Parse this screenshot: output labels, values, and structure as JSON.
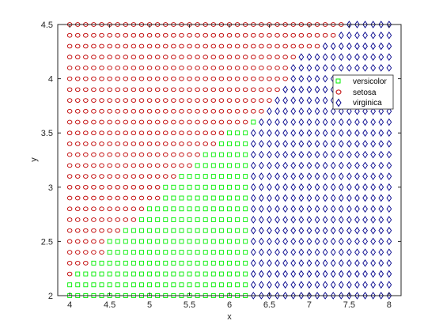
{
  "chart_data": {
    "type": "scatter",
    "title": "",
    "xlabel": "x",
    "ylabel": "y",
    "xlim": [
      3.85,
      8.15
    ],
    "ylim": [
      2.0,
      4.5
    ],
    "xticks": [
      "4",
      "4.5",
      "5",
      "5.5",
      "6",
      "6.5",
      "7",
      "7.5",
      "8"
    ],
    "yticks": [
      "2",
      "2.5",
      "3",
      "3.5",
      "4",
      "4.5"
    ],
    "grid": false,
    "box": true,
    "legend_position": "top-right inside",
    "grid_step": {
      "x": 0.1,
      "y": 0.1
    },
    "x_range": [
      4.0,
      8.0
    ],
    "y_range": [
      2.0,
      4.5
    ],
    "series": [
      {
        "name": "versicolor",
        "marker": "square",
        "color": "#00ee00"
      },
      {
        "name": "setosa",
        "marker": "circle",
        "color": "#c00000"
      },
      {
        "name": "virginica",
        "marker": "diamond",
        "color": "#00008b"
      }
    ],
    "regions": {
      "virginica_x_min_at_y": [
        {
          "y_max": 3.55,
          "x": 6.3
        },
        {
          "y_max": 3.65,
          "x": 6.4
        },
        {
          "y_max": 3.75,
          "x": 6.5
        },
        {
          "y_max": 3.85,
          "x": 6.6
        },
        {
          "y_max": 3.95,
          "x": 6.7
        },
        {
          "y_max": 4.15,
          "x": 6.8
        },
        {
          "y_max": 4.25,
          "x": 6.9
        },
        {
          "y_max": 4.35,
          "x": 7.2
        },
        {
          "y_max": 4.45,
          "x": 7.4
        },
        {
          "y_max": 4.55,
          "x": 7.5
        }
      ],
      "versicolor_x_min_at_y": [
        {
          "y_max": 2.05,
          "x": 4.0
        },
        {
          "y_max": 2.15,
          "x": 4.0
        },
        {
          "y_max": 2.25,
          "x": 4.1
        },
        {
          "y_max": 2.35,
          "x": 4.3
        },
        {
          "y_max": 2.55,
          "x": 4.5
        },
        {
          "y_max": 2.65,
          "x": 4.7
        },
        {
          "y_max": 2.75,
          "x": 4.9
        },
        {
          "y_max": 2.85,
          "x": 5.0
        },
        {
          "y_max": 3.05,
          "x": 5.2
        },
        {
          "y_max": 3.15,
          "x": 5.4
        },
        {
          "y_max": 3.25,
          "x": 5.6
        },
        {
          "y_max": 3.35,
          "x": 5.7
        },
        {
          "y_max": 3.45,
          "x": 5.9
        },
        {
          "y_max": 3.55,
          "x": 6.0
        },
        {
          "y_max": 3.65,
          "x": 6.3
        }
      ]
    }
  }
}
